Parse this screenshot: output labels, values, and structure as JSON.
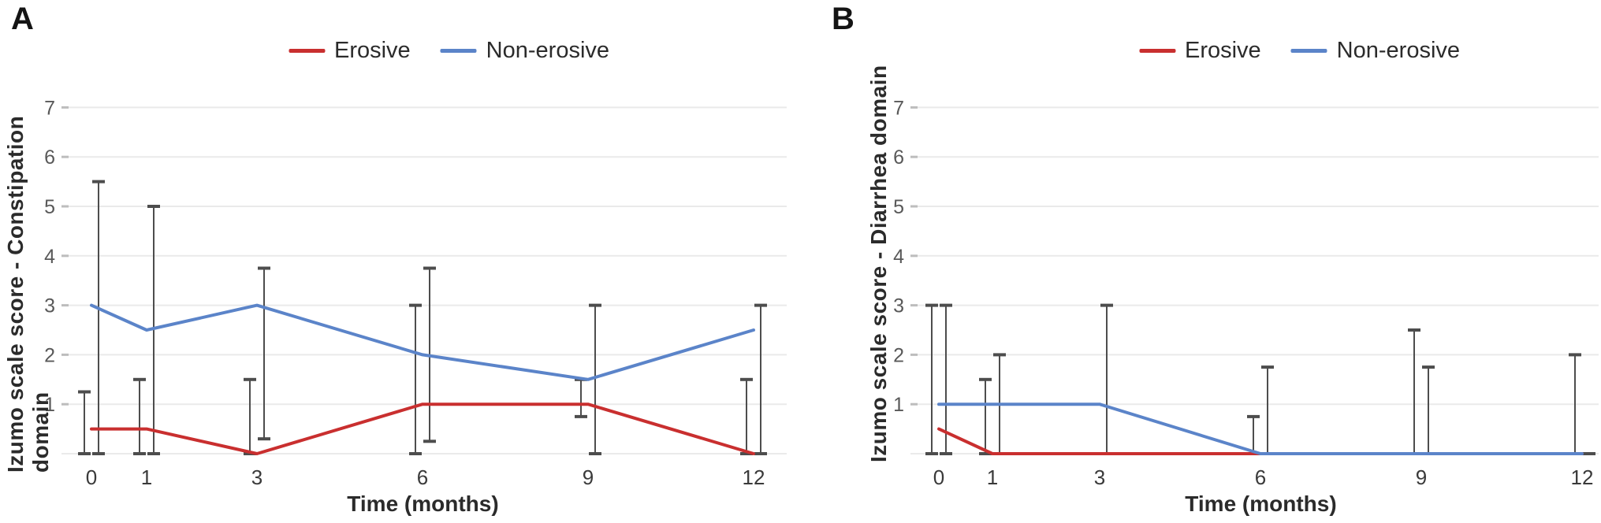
{
  "chart_data": [
    {
      "type": "line",
      "panel": "A",
      "title": "",
      "xlabel": "Time (months)",
      "ylabel": "Izumo scale score - Constipation domain",
      "x": [
        0,
        1,
        3,
        6,
        9,
        12
      ],
      "x_tick_labels": [
        "0",
        "1",
        "3",
        "6",
        "9",
        "12"
      ],
      "yticks": [
        1,
        2,
        3,
        4,
        5,
        6,
        7
      ],
      "ylim": [
        0,
        7.6
      ],
      "grid": true,
      "legend_position": "top-center",
      "error_bar_color": "#4d4d4d",
      "series": [
        {
          "name": "Erosive",
          "color": "#c92f2f",
          "values": [
            0.5,
            0.5,
            0,
            1,
            1,
            0
          ],
          "error_ranges": [
            [
              0,
              1.25
            ],
            [
              0,
              1.5
            ],
            [
              0,
              1.5
            ],
            [
              0,
              3
            ],
            [
              0.75,
              1.5
            ],
            [
              0,
              1.5
            ]
          ]
        },
        {
          "name": "Non-erosive",
          "color": "#5b84c9",
          "values": [
            3,
            2.5,
            3,
            2,
            1.5,
            2.5
          ],
          "error_ranges": [
            [
              0,
              5.5
            ],
            [
              0,
              5
            ],
            [
              0.3,
              3.75
            ],
            [
              0.25,
              3.75
            ],
            [
              0,
              3
            ],
            [
              0,
              3
            ]
          ]
        }
      ]
    },
    {
      "type": "line",
      "panel": "B",
      "title": "",
      "xlabel": "Time (months)",
      "ylabel": "Izumo scale score - Diarrhea domain",
      "x": [
        0,
        1,
        3,
        6,
        9,
        12
      ],
      "x_tick_labels": [
        "0",
        "1",
        "3",
        "6",
        "9",
        "12"
      ],
      "yticks": [
        1,
        2,
        3,
        4,
        5,
        6,
        7
      ],
      "ylim": [
        0,
        7.6
      ],
      "grid": true,
      "legend_position": "top-center",
      "error_bar_color": "#4d4d4d",
      "series": [
        {
          "name": "Erosive",
          "color": "#c92f2f",
          "values": [
            0.5,
            0,
            0,
            0,
            0,
            0
          ],
          "error_ranges": [
            [
              0,
              3
            ],
            [
              0,
              1.5
            ],
            [
              0,
              0
            ],
            [
              0,
              0.75
            ],
            [
              0,
              2.5
            ],
            [
              0,
              2
            ]
          ]
        },
        {
          "name": "Non-erosive",
          "color": "#5b84c9",
          "values": [
            1,
            1,
            1,
            0,
            0,
            0
          ],
          "error_ranges": [
            [
              0,
              3
            ],
            [
              0,
              2
            ],
            [
              0,
              3
            ],
            [
              0,
              1.75
            ],
            [
              0,
              1.75
            ],
            [
              0,
              0
            ]
          ]
        }
      ]
    }
  ]
}
